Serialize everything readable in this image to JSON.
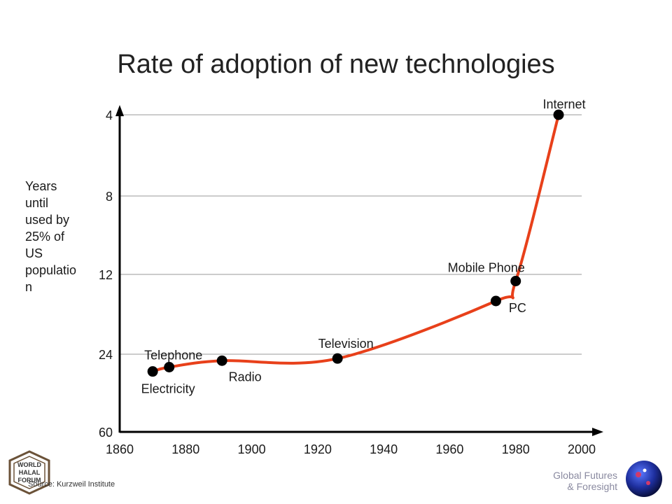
{
  "chart_data": {
    "type": "line",
    "title": "Rate of adoption of new technologies",
    "ylabel": [
      "Years",
      "until",
      "used by",
      "25% of",
      "US",
      "populatio",
      "n"
    ],
    "xlabel": "",
    "xlim": [
      1860,
      2000
    ],
    "x_ticks": [
      "1860",
      "1880",
      "1900",
      "1920",
      "1940",
      "1960",
      "1980",
      "2000"
    ],
    "y_ticks": [
      "4",
      "8",
      "12",
      "24",
      "60"
    ],
    "y_scale": "categorical-reversed",
    "gridlines_y": true,
    "line_color": "#e8401a",
    "point_color": "#000000",
    "points": [
      {
        "label": "Electricity",
        "x": 1870,
        "y": 32
      },
      {
        "label": "Telephone",
        "x": 1875,
        "y": 30
      },
      {
        "label": "Radio",
        "x": 1891,
        "y": 27
      },
      {
        "label": "Television",
        "x": 1926,
        "y": 26
      },
      {
        "label": "PC",
        "x": 1974,
        "y": 16
      },
      {
        "label": "Mobile Phone",
        "x": 1980,
        "y": 13
      },
      {
        "label": "Internet",
        "x": 1993,
        "y": 4
      }
    ]
  },
  "footer": {
    "source": "Source: Kurzweil Institute",
    "brand_line1": "Global Futures",
    "brand_line2": "& Foresight",
    "logo_text": [
      "WORLD",
      "HALAL",
      "FORUM"
    ]
  }
}
